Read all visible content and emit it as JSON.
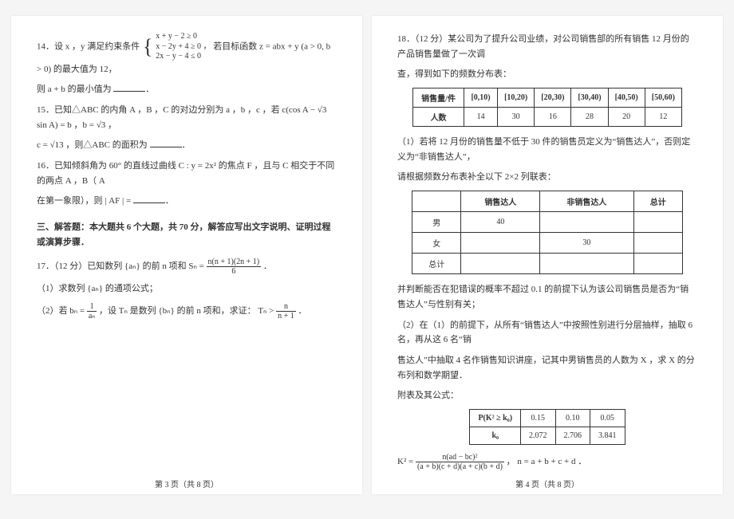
{
  "page_left": {
    "q14_prefix": "14．设 x ，y 满足约束条件",
    "q14_cases": [
      "x + y − 2 ≥ 0",
      "x − 2y + 4 ≥ 0 ，",
      "2x − y − 4 ≤ 0"
    ],
    "q14_tail": "若目标函数 z = abx + y (a > 0, b > 0) 的最大值为 12，",
    "q14_line2": "则 a + b 的最小值为",
    "q15_a": "15．已知△ABC 的内角 A ，B ，C 的对边分别为 a ，b ，c ，若 c(cos A − √3 sin A) = b ，b = √3 ，",
    "q15_b": "c = √13 ，则△ABC 的面积为",
    "q16_a": "16．已知倾斜角为 60° 的直线过曲线 C : y = 2x² 的焦点 F ，且与 C 相交于不同的两点 A ，B（ A",
    "q16_b": "在第一象限），则 | AF | =",
    "sec3": "三、解答题：本大题共 6 个大题，共 70 分，解答应写出文字说明、证明过程或演算步骤．",
    "q17_head": "17．（12 分）已知数列 {aₙ} 的前 n 项和 Sₙ =",
    "q17_frac_num": "n(n + 1)(2n + 1)",
    "q17_frac_den": "6",
    "q17_sub1": "（1）求数列 {aₙ} 的通项公式；",
    "q17_sub2a": "（2）若 bₙ =",
    "q17_b_frac_num": "1",
    "q17_b_frac_den": "aₙ",
    "q17_sub2b": "，设 Tₙ 是数列 {bₙ} 的前 n 项和，求证： Tₙ >",
    "q17_t_num": "n",
    "q17_t_den": "n + 1",
    "footer": "第 3 页（共 8 页）"
  },
  "page_right": {
    "q18_a": "18．（12 分）某公司为了提升公司业绩，对公司销售部的所有销售 12 月份的产品销售量做了一次调",
    "q18_b": "查，得到如下的频数分布表：",
    "freq_table": {
      "row1_label": "销售量/件",
      "intervals": [
        "[0,10)",
        "[10,20)",
        "[20,30)",
        "[30,40)",
        "[40,50)",
        "[50,60)"
      ],
      "row2_label": "人数",
      "counts": [
        "14",
        "30",
        "16",
        "28",
        "20",
        "12"
      ]
    },
    "q18_p1a": "（1）若将 12 月份的销售量不低于 30 件的销售员定义为“销售达人”，否则定义为“非销售达人”，",
    "q18_p1b": "请根据频数分布表补全以下 2×2 列联表：",
    "contingency": {
      "cols": [
        "",
        "销售达人",
        "非销售达人",
        "总计"
      ],
      "rows": [
        [
          "男",
          "40",
          "",
          ""
        ],
        [
          "女",
          "",
          "30",
          ""
        ],
        [
          "总计",
          "",
          "",
          ""
        ]
      ]
    },
    "q18_p1c": "并判断能否在犯错误的概率不超过 0.1 的前提下认为该公司销售员是否为“销售达人”与性别有关；",
    "q18_p2a": "（2）在（1）的前提下，从所有“销售达人”中按照性别进行分层抽样，抽取 6 名，再从这 6 名“销",
    "q18_p2b": "售达人”中抽取 4 名作销售知识讲座，记其中男销售员的人数为 X ，求 X 的分布列和数学期望．",
    "q18_appendix": "附表及其公式：",
    "k2_table": {
      "head": [
        "P(K² ≥ k₀)",
        "0.15",
        "0.10",
        "0.05"
      ],
      "row": [
        "k₀",
        "2.072",
        "2.706",
        "3.841"
      ]
    },
    "k2_formula_lhs": "K² =",
    "k2_num": "n(ad − bc)²",
    "k2_den": "(a + b)(c + d)(a + c)(b + d)",
    "k2_tail": "，  n = a + b + c + d ．",
    "footer": "第 4 页（共 8 页）"
  }
}
